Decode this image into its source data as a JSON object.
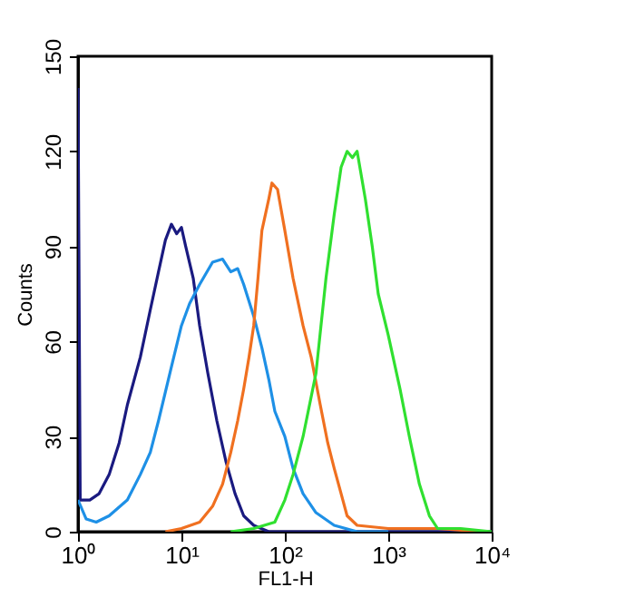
{
  "chart_data": {
    "type": "line",
    "xlabel": "FL1-H",
    "ylabel": "Counts",
    "log": "x",
    "grid": false,
    "legend": false,
    "marker": "none",
    "line_style": "solid",
    "xlim": [
      1,
      10000
    ],
    "xticks": [
      {
        "value": 1,
        "label": "10⁰"
      },
      {
        "value": 10,
        "label": "10¹"
      },
      {
        "value": 100,
        "label": "10²"
      },
      {
        "value": 1000,
        "label": "10³"
      },
      {
        "value": 10000,
        "label": "10⁴"
      }
    ],
    "ylim": [
      0,
      150
    ],
    "yticks": [
      0,
      30,
      60,
      90,
      120,
      150
    ],
    "series": [
      {
        "color": "#1a1a80",
        "x": [
          1,
          1.05,
          1.3,
          1.6,
          2,
          2.5,
          3,
          4,
          5,
          6,
          7,
          8,
          9,
          10,
          11,
          13,
          15,
          18,
          22,
          27,
          33,
          40,
          50,
          70,
          100,
          200,
          10000
        ],
        "values": [
          140,
          10,
          10,
          12,
          18,
          28,
          40,
          55,
          70,
          82,
          92,
          97,
          94,
          96,
          90,
          80,
          65,
          50,
          35,
          22,
          12,
          5,
          2,
          0,
          0,
          0,
          0
        ]
      },
      {
        "color": "#1e90e6",
        "x": [
          1,
          1.2,
          1.5,
          2,
          3,
          4,
          5,
          6,
          8,
          10,
          12,
          15,
          20,
          25,
          30,
          35,
          40,
          50,
          60,
          70,
          80,
          100,
          120,
          150,
          200,
          300,
          500,
          1000
        ],
        "values": [
          10,
          4,
          3,
          5,
          10,
          18,
          25,
          35,
          52,
          65,
          72,
          78,
          85,
          86,
          82,
          83,
          78,
          68,
          58,
          48,
          38,
          30,
          20,
          12,
          6,
          2,
          0,
          0
        ]
      },
      {
        "color": "#f07020",
        "x": [
          7,
          10,
          15,
          20,
          25,
          30,
          35,
          40,
          45,
          50,
          55,
          60,
          70,
          75,
          85,
          100,
          120,
          150,
          180,
          220,
          260,
          300,
          350,
          400,
          500,
          1000,
          3000,
          8000
        ],
        "values": [
          0,
          1,
          3,
          8,
          15,
          25,
          35,
          45,
          55,
          65,
          80,
          95,
          105,
          110,
          108,
          95,
          80,
          65,
          55,
          40,
          28,
          20,
          12,
          5,
          2,
          1,
          1,
          0
        ]
      },
      {
        "color": "#30e030",
        "x": [
          30,
          50,
          80,
          100,
          120,
          150,
          200,
          250,
          300,
          350,
          400,
          450,
          500,
          600,
          700,
          800,
          1000,
          1300,
          1600,
          2000,
          2500,
          3000,
          5000,
          10000
        ],
        "values": [
          0,
          1,
          3,
          10,
          18,
          30,
          50,
          80,
          100,
          115,
          120,
          118,
          120,
          105,
          90,
          75,
          62,
          45,
          30,
          15,
          5,
          1,
          1,
          0
        ]
      }
    ]
  }
}
